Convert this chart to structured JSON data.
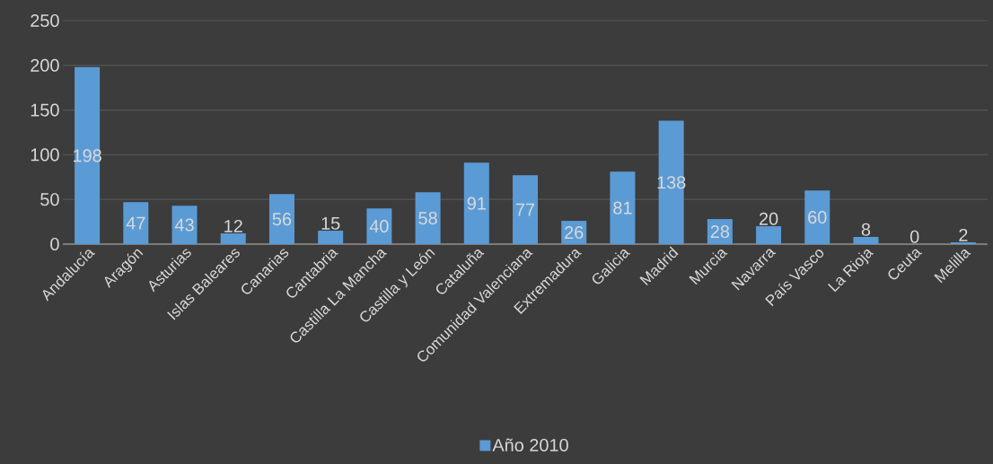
{
  "chart_data": {
    "type": "bar",
    "categories": [
      "Andalucía",
      "Aragón",
      "Asturias",
      "Islas Baleares",
      "Canarias",
      "Cantabria",
      "Castilla La Mancha",
      "Castilla y León",
      "Cataluña",
      "Comunidad Valenciana",
      "Extremadura",
      "Galicia",
      "Madrid",
      "Murcia",
      "Navarra",
      "País Vasco",
      "La Rioja",
      "Ceuta",
      "Melilla"
    ],
    "series": [
      {
        "name": "Año 2010",
        "color": "#5b9bd5",
        "values": [
          198,
          47,
          43,
          12,
          56,
          15,
          40,
          58,
          91,
          77,
          26,
          81,
          138,
          28,
          20,
          60,
          8,
          0,
          2
        ]
      }
    ],
    "ylim": [
      0,
      250
    ],
    "yticks": [
      0,
      50,
      100,
      150,
      200,
      250
    ],
    "grid": "y",
    "legend": "bottom",
    "data_labels": true
  }
}
